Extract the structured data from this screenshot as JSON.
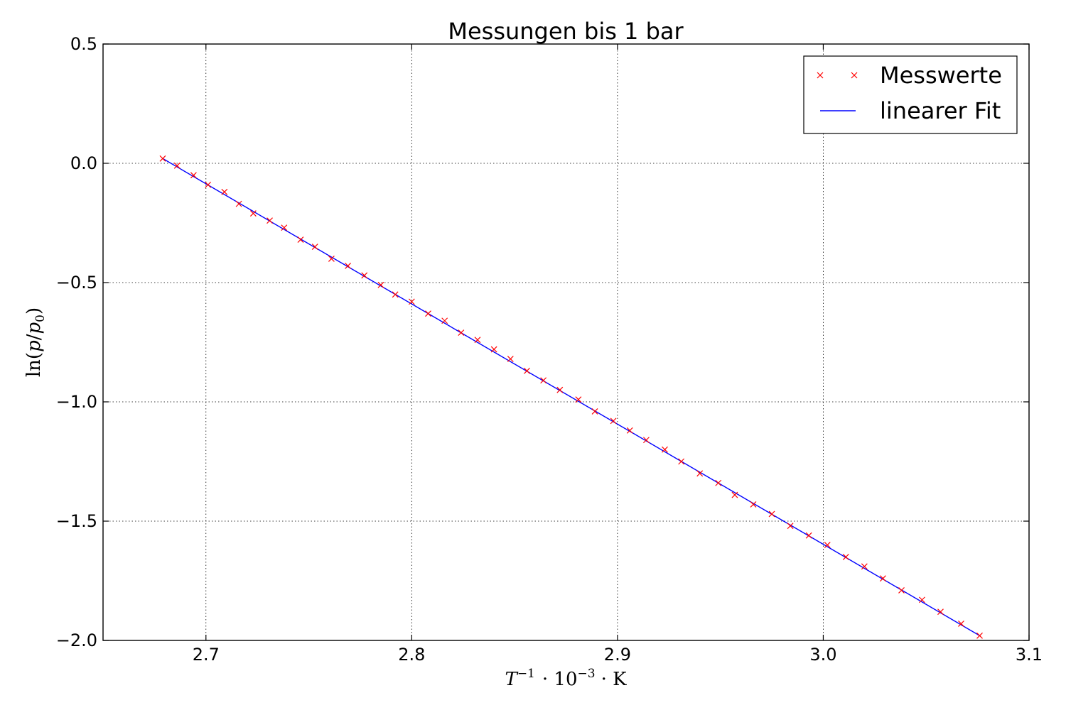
{
  "chart_data": {
    "type": "scatter",
    "title": "Messungen bis 1 bar",
    "xlabel": {
      "T": "T",
      "T_exp": "−1",
      "mid": "· 10",
      "mid_exp": "−3",
      "end": "· K"
    },
    "ylabel": {
      "pre": "ln(",
      "p": "p",
      "slash": "/",
      "p0": "p",
      "p0_sub": "0",
      "post": ")"
    },
    "xlim": [
      2.65,
      3.1
    ],
    "ylim": [
      -2.0,
      0.5
    ],
    "x_ticks": [
      2.7,
      2.8,
      2.9,
      3.0,
      3.1
    ],
    "x_tick_labels": [
      "2.7",
      "2.8",
      "2.9",
      "3.0",
      "3.1"
    ],
    "y_ticks": [
      0.5,
      0.0,
      -0.5,
      -1.0,
      -1.5,
      -2.0
    ],
    "y_tick_labels": [
      "0.5",
      "0.0",
      "−0.5",
      "−1.0",
      "−1.5",
      "−2.0"
    ],
    "grid": true,
    "legend_position": "top-right",
    "series": [
      {
        "name": "Messwerte",
        "kind": "scatter",
        "marker": "x",
        "color": "#ff0000",
        "x": [
          2.679,
          2.686,
          2.694,
          2.701,
          2.709,
          2.716,
          2.723,
          2.731,
          2.738,
          2.746,
          2.753,
          2.761,
          2.769,
          2.777,
          2.785,
          2.792,
          2.8,
          2.808,
          2.816,
          2.824,
          2.832,
          2.84,
          2.848,
          2.856,
          2.864,
          2.872,
          2.881,
          2.889,
          2.898,
          2.906,
          2.914,
          2.923,
          2.931,
          2.94,
          2.949,
          2.957,
          2.966,
          2.975,
          2.984,
          2.993,
          3.002,
          3.011,
          3.02,
          3.029,
          3.038,
          3.048,
          3.057,
          3.067,
          3.076
        ],
        "y": [
          0.02,
          -0.01,
          -0.05,
          -0.09,
          -0.12,
          -0.17,
          -0.21,
          -0.24,
          -0.27,
          -0.32,
          -0.35,
          -0.4,
          -0.43,
          -0.47,
          -0.51,
          -0.55,
          -0.58,
          -0.63,
          -0.66,
          -0.71,
          -0.74,
          -0.78,
          -0.82,
          -0.87,
          -0.91,
          -0.95,
          -0.99,
          -1.04,
          -1.08,
          -1.12,
          -1.16,
          -1.2,
          -1.25,
          -1.3,
          -1.34,
          -1.39,
          -1.43,
          -1.47,
          -1.52,
          -1.56,
          -1.6,
          -1.65,
          -1.69,
          -1.74,
          -1.79,
          -1.83,
          -1.88,
          -1.93,
          -1.98
        ]
      },
      {
        "name": "linearer Fit",
        "kind": "line",
        "color": "#0000ff",
        "x": [
          2.679,
          3.076
        ],
        "y": [
          0.02,
          -1.98
        ]
      }
    ]
  }
}
